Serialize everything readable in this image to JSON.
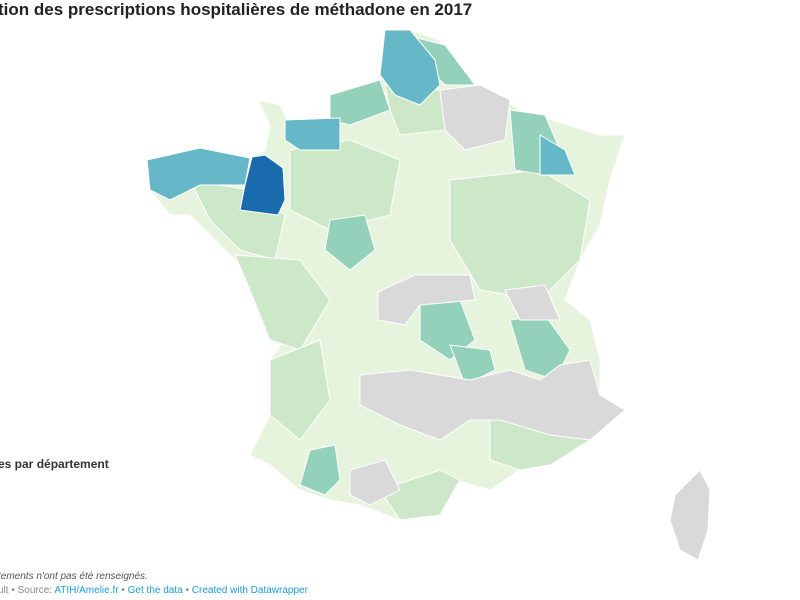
{
  "title": "tion des prescriptions hospitalières de méthadone en 2017",
  "legend_title": "es par département",
  "note": "tements n'ont pas été renseignés.",
  "footer": {
    "prefix": "ult • Source: ",
    "source_link": "ATIH/Amelie.fr",
    "sep": " • ",
    "data_link": "Get the data",
    "credit_link": "Created with Datawrapper"
  },
  "colors": {
    "no_data": "#d9d9d9",
    "level1": "#e6f3dd",
    "level2": "#cde8c8",
    "level3": "#93d1bb",
    "level4": "#66b7c7",
    "level5": "#1a6aae",
    "link": "#1d9bd6"
  }
}
